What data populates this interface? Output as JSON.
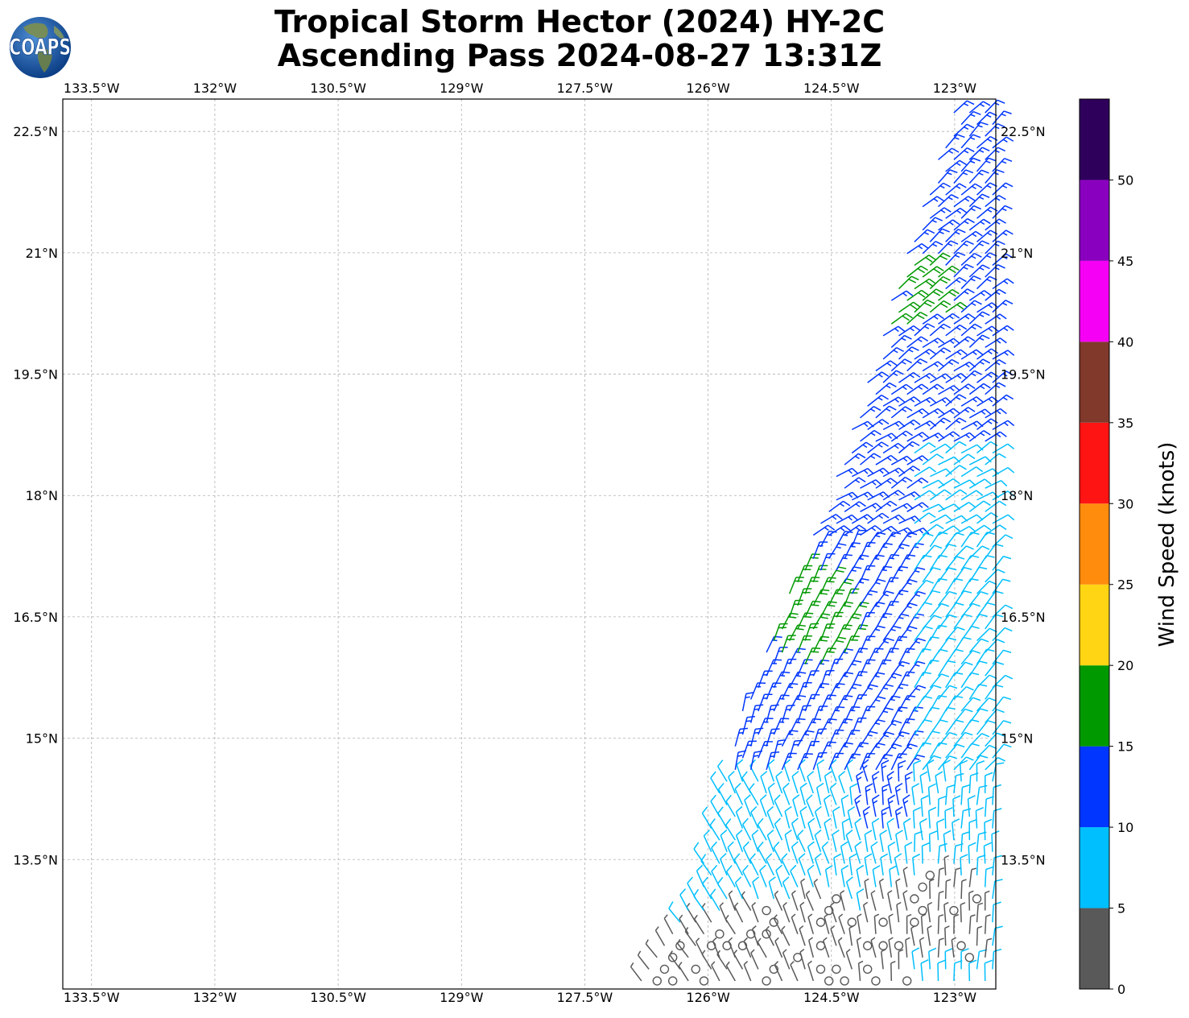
{
  "header": {
    "title_line1": "Tropical Storm Hector (2024) HY-2C",
    "title_line2": "Ascending Pass 2024-08-27 13:31Z"
  },
  "logo": {
    "text": "COAPS"
  },
  "map": {
    "lon_range": [
      -133.85,
      -122.5
    ],
    "lat_range": [
      11.9,
      22.9
    ],
    "lon_ticks": [
      {
        "value": -133.5,
        "label": "133.5°W"
      },
      {
        "value": -132.0,
        "label": "132°W"
      },
      {
        "value": -130.5,
        "label": "130.5°W"
      },
      {
        "value": -129.0,
        "label": "129°W"
      },
      {
        "value": -127.5,
        "label": "127.5°W"
      },
      {
        "value": -126.0,
        "label": "126°W"
      },
      {
        "value": -124.5,
        "label": "124.5°W"
      },
      {
        "value": -123.0,
        "label": "123°W"
      }
    ],
    "lat_ticks": [
      {
        "value": 22.5,
        "label": "22.5°N"
      },
      {
        "value": 21.0,
        "label": "21°N"
      },
      {
        "value": 19.5,
        "label": "19.5°N"
      },
      {
        "value": 18.0,
        "label": "18°N"
      },
      {
        "value": 16.5,
        "label": "16.5°N"
      },
      {
        "value": 15.0,
        "label": "15°N"
      },
      {
        "value": 13.5,
        "label": "13.5°N"
      }
    ],
    "gridlines": true
  },
  "colorbar": {
    "label": "Wind Speed (knots)",
    "tick_labels": [
      "0",
      "5",
      "10",
      "15",
      "20",
      "25",
      "30",
      "35",
      "40",
      "45",
      "50"
    ],
    "bins": [
      {
        "from": 0,
        "to": 5,
        "color": "#595959"
      },
      {
        "from": 5,
        "to": 10,
        "color": "#00bfff"
      },
      {
        "from": 10,
        "to": 15,
        "color": "#0036ff"
      },
      {
        "from": 15,
        "to": 20,
        "color": "#009900"
      },
      {
        "from": 20,
        "to": 25,
        "color": "#ffd514"
      },
      {
        "from": 25,
        "to": 30,
        "color": "#ff8c0d"
      },
      {
        "from": 30,
        "to": 35,
        "color": "#ff1414"
      },
      {
        "from": 35,
        "to": 40,
        "color": "#80392b"
      },
      {
        "from": 40,
        "to": 45,
        "color": "#f500f5"
      },
      {
        "from": 45,
        "to": 50,
        "color": "#8a00bf"
      },
      {
        "from": 50,
        "to": 55,
        "color": "#2e005c"
      }
    ]
  },
  "swath": {
    "polygon": [
      [
        -123.0,
        22.85
      ],
      [
        -122.5,
        22.85
      ],
      [
        -122.5,
        11.9
      ],
      [
        -127.0,
        11.9
      ],
      [
        -126.2,
        13.1
      ],
      [
        -125.6,
        15.4
      ],
      [
        -124.6,
        17.8
      ],
      [
        -124.0,
        19.7
      ],
      [
        -123.6,
        21.0
      ],
      [
        -123.1,
        22.5
      ]
    ],
    "wind_zones": [
      {
        "name": "calm-southeast",
        "region": [
          [
            -127.1,
            11.9
          ],
          [
            -123.5,
            11.9
          ],
          [
            -123.5,
            12.3
          ],
          [
            -124.5,
            13.1
          ],
          [
            -125.6,
            12.9
          ],
          [
            -126.4,
            12.7
          ],
          [
            -126.9,
            12.2
          ]
        ],
        "speed_class": "0-5"
      },
      {
        "name": "calm-east",
        "region": [
          [
            -124.0,
            12.2
          ],
          [
            -122.6,
            12.2
          ],
          [
            -122.6,
            13.1
          ],
          [
            -123.1,
            13.4
          ],
          [
            -124.1,
            13.0
          ]
        ],
        "speed_class": "0-5"
      },
      {
        "name": "green-north",
        "region": [
          [
            -123.85,
            20.0
          ],
          [
            -123.0,
            20.3
          ],
          [
            -123.3,
            20.9
          ],
          [
            -123.6,
            20.9
          ]
        ],
        "speed_class": "15-20"
      },
      {
        "name": "green-center",
        "region": [
          [
            -125.3,
            16.3
          ],
          [
            -124.7,
            17.1
          ],
          [
            -124.1,
            16.5
          ],
          [
            -124.3,
            16.0
          ],
          [
            -124.9,
            15.8
          ]
        ],
        "speed_class": "15-20"
      },
      {
        "name": "green-west",
        "region": [
          [
            -125.3,
            16.3
          ],
          [
            -124.7,
            17.1
          ],
          [
            -125.1,
            17.2
          ],
          [
            -125.4,
            16.7
          ]
        ],
        "speed_class": "15-20"
      }
    ]
  }
}
